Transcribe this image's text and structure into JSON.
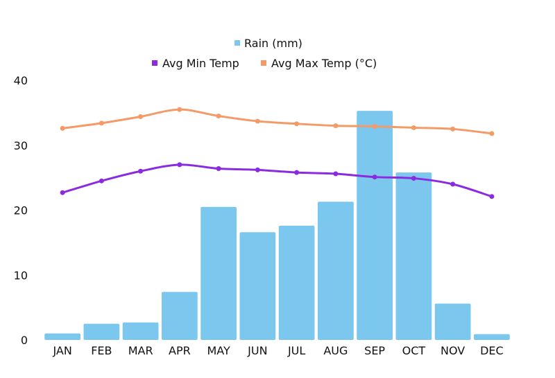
{
  "colors": {
    "rain": "#7cc7ee",
    "min": "#8a2be2",
    "max": "#f39a66"
  },
  "legend": {
    "rain": "Rain (mm)",
    "min": "Avg Min Temp",
    "max": "Avg Max Temp (°C)"
  },
  "chart_data": {
    "type": "bar",
    "categories": [
      "JAN",
      "FEB",
      "MAR",
      "APR",
      "MAY",
      "JUN",
      "JUL",
      "AUG",
      "SEP",
      "OCT",
      "NOV",
      "DEC"
    ],
    "series": [
      {
        "name": "Rain (mm)",
        "type": "bar",
        "values": [
          1,
          2.5,
          2.7,
          7.4,
          20.5,
          16.6,
          17.6,
          21.3,
          35.3,
          25.8,
          5.6,
          0.9
        ]
      },
      {
        "name": "Avg Min Temp",
        "type": "line",
        "values": [
          22.7,
          24.5,
          26.0,
          27.0,
          26.4,
          26.2,
          25.8,
          25.6,
          25.1,
          24.9,
          24.0,
          22.1
        ]
      },
      {
        "name": "Avg Max Temp (°C)",
        "type": "line",
        "values": [
          32.6,
          33.4,
          34.4,
          35.5,
          34.5,
          33.7,
          33.3,
          33.0,
          32.9,
          32.7,
          32.5,
          31.8
        ]
      }
    ],
    "ylim": [
      0,
      40
    ],
    "yticks": [
      "0",
      "10",
      "20",
      "30",
      "40"
    ],
    "grid": false,
    "legend_position": "top"
  }
}
